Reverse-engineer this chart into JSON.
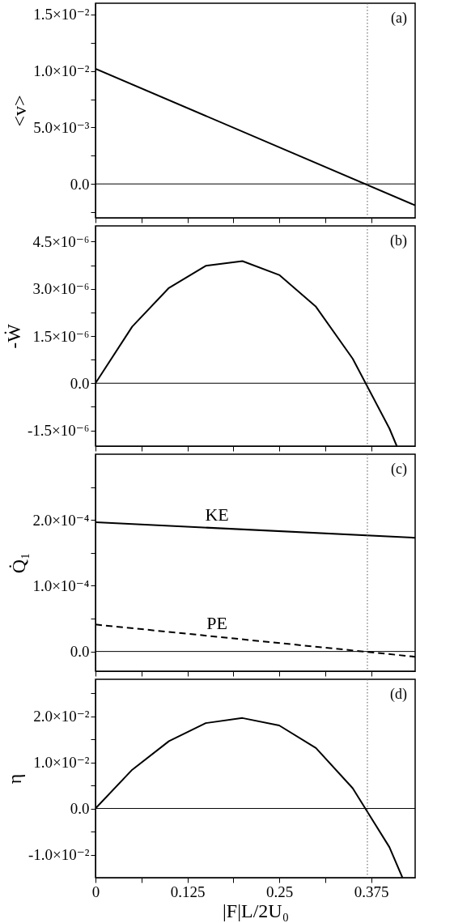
{
  "chart_data": [
    {
      "type": "line",
      "ylabel": "<v>",
      "tick_labels": "y",
      "annotations": [
        "(a)"
      ],
      "xlim": [
        0,
        0.435
      ],
      "xticks": [
        0,
        {
          "value": 0.0625,
          "label": null
        },
        {
          "value": 0.125,
          "label": null
        },
        {
          "value": 0.1875,
          "label": null
        },
        {
          "value": 0.25,
          "label": null
        },
        {
          "value": 0.3125,
          "label": null
        },
        {
          "value": 0.375,
          "label": null
        }
      ],
      "ylim": [
        -0.003,
        0.016
      ],
      "yticks": [
        {
          "value": -0.0025,
          "label": null
        },
        {
          "value": 0,
          "label": "0.0"
        },
        {
          "value": 0.0025,
          "label": null
        },
        {
          "value": 0.005,
          "label": "5.0×10⁻³"
        },
        {
          "value": 0.0075,
          "label": null
        },
        {
          "value": 0.01,
          "label": "1.0×10⁻²"
        },
        {
          "value": 0.0125,
          "label": null
        },
        {
          "value": 0.015,
          "label": "1.5×10⁻²"
        }
      ],
      "x": [
        0,
        0.435
      ],
      "series": [
        {
          "color": "#000000",
          "values": [
            0.0102,
            -0.0019
          ]
        }
      ],
      "ref_lines": [
        {
          "axis": "y",
          "value": 0,
          "color": "#000000",
          "line_style": "solid"
        },
        {
          "axis": "x",
          "value": 0.37,
          "color": "#555555",
          "line_style": "dotted"
        }
      ]
    },
    {
      "type": "line",
      "ylabel": "-Ẇ",
      "tick_labels": "y",
      "annotations": [
        "(b)"
      ],
      "xlim": [
        0,
        0.435
      ],
      "xticks": [
        0,
        {
          "value": 0.0625,
          "label": null
        },
        {
          "value": 0.125,
          "label": null
        },
        {
          "value": 0.1875,
          "label": null
        },
        {
          "value": 0.25,
          "label": null
        },
        {
          "value": 0.3125,
          "label": null
        },
        {
          "value": 0.375,
          "label": null
        }
      ],
      "ylim": [
        -2e-06,
        5e-06
      ],
      "yticks": [
        {
          "value": -1.5e-06,
          "label": "-1.5×10⁻⁶"
        },
        {
          "value": -7.5e-07,
          "label": null
        },
        {
          "value": 0,
          "label": "0.0"
        },
        {
          "value": 7.5e-07,
          "label": null
        },
        {
          "value": 1.5e-06,
          "label": "1.5×10⁻⁶"
        },
        {
          "value": 2.25e-06,
          "label": null
        },
        {
          "value": 3e-06,
          "label": "3.0×10⁻⁶"
        },
        {
          "value": 3.75e-06,
          "label": null
        },
        {
          "value": 4.5e-06,
          "label": "4.5×10⁻⁶"
        }
      ],
      "x": [
        0,
        0.05,
        0.1,
        0.15,
        0.2,
        0.25,
        0.3,
        0.35,
        0.4,
        0.41
      ],
      "series": [
        {
          "color": "#000000",
          "values": [
            0,
            1.8e-06,
            3.03e-06,
            3.73e-06,
            3.88e-06,
            3.44e-06,
            2.43e-06,
            7.8e-07,
            -1.44e-06,
            -2e-06
          ]
        }
      ],
      "ref_lines": [
        {
          "axis": "y",
          "value": 0,
          "color": "#000000",
          "line_style": "solid"
        },
        {
          "axis": "x",
          "value": 0.37,
          "color": "#555555",
          "line_style": "dotted"
        }
      ]
    },
    {
      "type": "line",
      "ylabel": "Q̇₁",
      "tick_labels": "y",
      "annotations": [
        "(c)"
      ],
      "xlim": [
        0,
        0.435
      ],
      "xticks": [
        0,
        {
          "value": 0.0625,
          "label": null
        },
        {
          "value": 0.125,
          "label": null
        },
        {
          "value": 0.1875,
          "label": null
        },
        {
          "value": 0.25,
          "label": null
        },
        {
          "value": 0.3125,
          "label": null
        },
        {
          "value": 0.375,
          "label": null
        }
      ],
      "ylim": [
        -3e-05,
        0.0003
      ],
      "yticks": [
        {
          "value": 0,
          "label": "0.0"
        },
        {
          "value": 5e-05,
          "label": null
        },
        {
          "value": 0.0001,
          "label": "1.0×10⁻⁴"
        },
        {
          "value": 0.00015,
          "label": null
        },
        {
          "value": 0.0002,
          "label": "2.0×10⁻⁴"
        },
        {
          "value": 0.00025,
          "label": null
        }
      ],
      "x": [
        0,
        0.435
      ],
      "series": [
        {
          "name": "KE",
          "color": "#000000",
          "line_style": "solid",
          "values": [
            0.0001965,
            0.000173
          ]
        },
        {
          "name": "PE",
          "color": "#000000",
          "line_style": "dashed",
          "values": [
            4.1e-05,
            -8e-06
          ]
        }
      ],
      "ref_lines": [
        {
          "axis": "y",
          "value": 0,
          "color": "#000000",
          "line_style": "solid"
        },
        {
          "axis": "x",
          "value": 0.37,
          "color": "#555555",
          "line_style": "dotted"
        }
      ]
    },
    {
      "type": "line",
      "ylabel": "η",
      "xlabel": "|F|L/2U₀",
      "annotations": [
        "(d)"
      ],
      "xlim": [
        0,
        0.435
      ],
      "xticks": [
        0,
        {
          "value": 0.0625,
          "label": null
        },
        0.125,
        {
          "value": 0.1875,
          "label": null
        },
        0.25,
        {
          "value": 0.3125,
          "label": null
        },
        0.375
      ],
      "ylim": [
        -0.015,
        0.028
      ],
      "yticks": [
        {
          "value": -0.01,
          "label": "-1.0×10⁻²"
        },
        {
          "value": -0.005,
          "label": null
        },
        {
          "value": 0,
          "label": "0.0"
        },
        {
          "value": 0.005,
          "label": null
        },
        {
          "value": 0.01,
          "label": "1.0×10⁻²"
        },
        {
          "value": 0.015,
          "label": null
        },
        {
          "value": 0.02,
          "label": "2.0×10⁻²"
        },
        {
          "value": 0.025,
          "label": null
        }
      ],
      "x": [
        0,
        0.05,
        0.1,
        0.15,
        0.2,
        0.25,
        0.3,
        0.35,
        0.4,
        0.4177
      ],
      "series": [
        {
          "color": "#000000",
          "values": [
            0,
            0.0084,
            0.0146,
            0.0185,
            0.0196,
            0.018,
            0.0131,
            0.0044,
            -0.0084,
            -0.015
          ]
        }
      ],
      "ref_lines": [
        {
          "axis": "y",
          "value": 0,
          "color": "#000000",
          "line_style": "solid"
        },
        {
          "axis": "x",
          "value": 0.37,
          "color": "#555555",
          "line_style": "dotted"
        }
      ]
    }
  ]
}
